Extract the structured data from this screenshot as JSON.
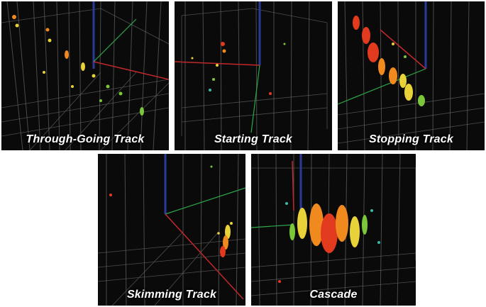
{
  "panels": [
    {
      "id": "through-going-track",
      "caption": "Through-Going Track"
    },
    {
      "id": "starting-track",
      "caption": "Starting Track"
    },
    {
      "id": "stopping-track",
      "caption": "Stopping Track"
    },
    {
      "id": "skimming-track",
      "caption": "Skimming Track"
    },
    {
      "id": "cascade",
      "caption": "Cascade"
    }
  ],
  "colors": {
    "background": "#0a0a0a",
    "strings": "#5a5a5a",
    "grid": "#6a6a6a",
    "axis_red": "#c0282a",
    "axis_green": "#2ea84a",
    "axis_blue": "#2a3a9a",
    "hit_red": "#e23a1e",
    "hit_orange": "#f08a1e",
    "hit_yellow": "#e8d23a",
    "hit_green": "#7ac83a",
    "hit_cyan": "#3ab8a8"
  }
}
